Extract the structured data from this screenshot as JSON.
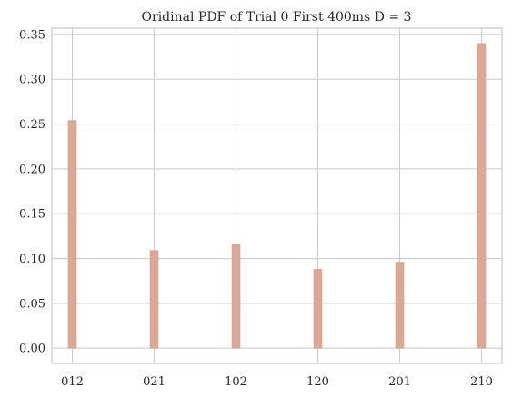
{
  "chart_data": {
    "type": "bar",
    "title": "Oridinal PDF of Trial 0 First 400ms D = 3",
    "xlabel": "",
    "ylabel": "",
    "categories": [
      "012",
      "021",
      "102",
      "120",
      "201",
      "210"
    ],
    "values": [
      0.254,
      0.109,
      0.116,
      0.088,
      0.096,
      0.34
    ],
    "ylim": [
      -0.017,
      0.357
    ],
    "yticks": [
      "0.00",
      "0.05",
      "0.10",
      "0.15",
      "0.20",
      "0.25",
      "0.30",
      "0.35"
    ],
    "grid": true,
    "legend": "none",
    "bar_color": "#dda796",
    "grid_color": "#cccccc",
    "axis_color": "#cccccc"
  }
}
